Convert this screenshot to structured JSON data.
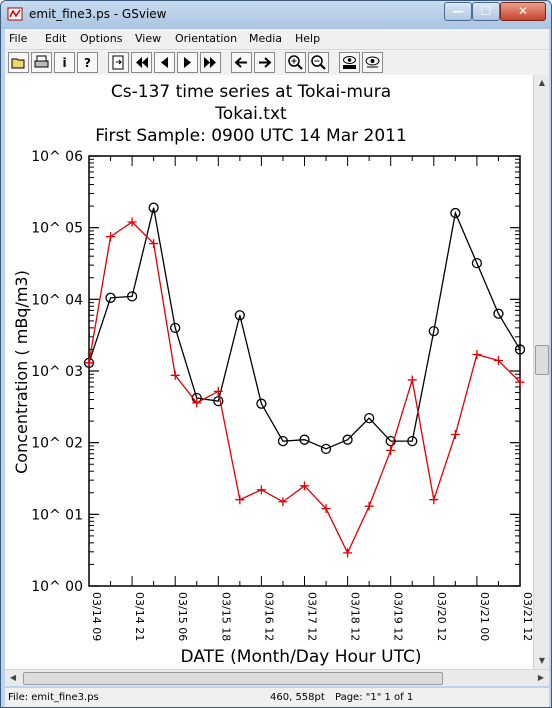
{
  "window": {
    "title": "emit_fine3.ps - GSview",
    "controls": {
      "minimize": "—",
      "maximize": "☐",
      "close": "✕"
    }
  },
  "menu": [
    "File",
    "Edit",
    "Options",
    "View",
    "Orientation",
    "Media",
    "Help"
  ],
  "toolbar": {
    "info_label": "i",
    "help_label": "?"
  },
  "status": {
    "file": "File: emit_fine3.ps",
    "coords": "460, 558pt",
    "page": "Page: \"1\"  1 of 1"
  },
  "chart_data": {
    "type": "line",
    "title_lines": [
      "Cs-137 time series at Tokai-mura",
      "Tokai.txt",
      "First Sample: 0900 UTC 14 Mar 2011"
    ],
    "xlabel": "DATE (Month/Day Hour UTC)",
    "ylabel": "Concentration ( mBq/m3)",
    "y_scale": "log",
    "ylim": [
      1,
      1000000
    ],
    "y_tick_labels": [
      "10^ 00",
      "10^ 01",
      "10^ 02",
      "10^ 03",
      "10^ 04",
      "10^ 05",
      "10^ 06"
    ],
    "x_tick_labels": [
      "03/14 09",
      "03/14 21",
      "03/15 06",
      "03/15 18",
      "03/16 12",
      "03/17 12",
      "03/18 12",
      "03/19 12",
      "03/20 12",
      "03/21 00",
      "03/21 12"
    ],
    "series": [
      {
        "color": "#000000",
        "marker": "circle",
        "x_index": [
          0,
          1,
          2,
          3,
          4,
          5,
          6,
          7,
          8,
          9,
          10,
          11,
          12,
          13,
          14,
          15,
          16,
          17,
          18,
          19,
          20
        ],
        "values": [
          1300,
          10500,
          11000,
          190000,
          4000,
          420,
          380,
          6000,
          350,
          105,
          110,
          82,
          110,
          220,
          105,
          105,
          3600,
          160000,
          32000,
          6300,
          2000
        ]
      },
      {
        "color": "#e00000",
        "marker": "plus",
        "x_index": [
          0,
          1,
          2,
          3,
          4,
          5,
          6,
          7,
          8,
          9,
          10,
          11,
          12,
          13,
          14,
          15,
          16,
          17,
          18,
          19,
          20
        ],
        "values": [
          1300,
          75000,
          120000,
          60000,
          870,
          360,
          520,
          16,
          22,
          15,
          25,
          12,
          2.9,
          13,
          78,
          750,
          16,
          130,
          1700,
          1400,
          700
        ]
      }
    ]
  }
}
